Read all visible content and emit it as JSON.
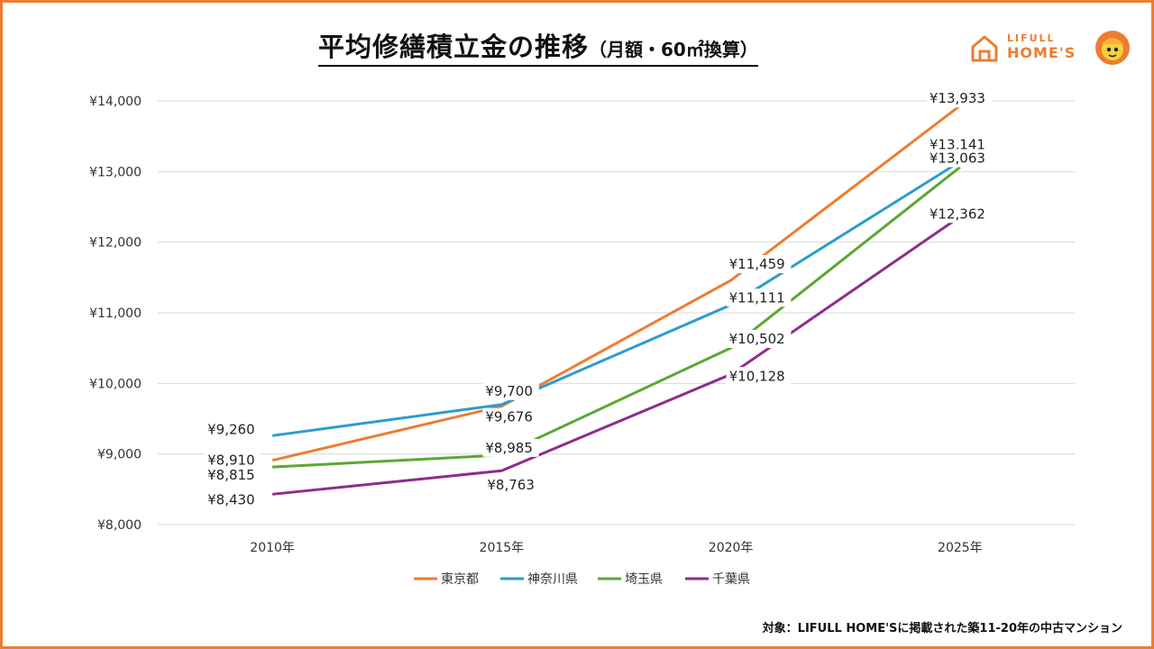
{
  "title": {
    "main": "平均修繕積立金の推移",
    "sub": "（月額・60㎡換算）"
  },
  "logo": {
    "line1": "LIFULL",
    "line2": "HOME'S"
  },
  "footnote": "対象：LIFULL HOME'Sに掲載された築11-20年の中古マンション",
  "colors": {
    "frame": "#ed7d31",
    "tokyo": "#ed7d31",
    "kanagawa": "#2e9bd0",
    "saitama": "#5aa832",
    "chiba": "#8e2c8e",
    "grid": "#d9d9d9"
  },
  "chart_data": {
    "type": "line",
    "title": "平均修繕積立金の推移（月額・60㎡換算）",
    "categories": [
      "2010年",
      "2015年",
      "2020年",
      "2025年"
    ],
    "y_ticks": [
      "¥8,000",
      "¥9,000",
      "¥10,000",
      "¥11,000",
      "¥12,000",
      "¥13,000",
      "¥14,000"
    ],
    "ylim": [
      8000,
      14000
    ],
    "grid": true,
    "legend_position": "bottom",
    "series": [
      {
        "name": "東京都",
        "color": "#ed7d31",
        "values": [
          8910,
          9676,
          11459,
          13933
        ],
        "labels": [
          "¥8,910",
          "¥9,676",
          "¥11,459",
          "¥13,933"
        ]
      },
      {
        "name": "神奈川県",
        "color": "#2e9bd0",
        "values": [
          9260,
          9700,
          11111,
          13141
        ],
        "labels": [
          "¥9,260",
          "¥9,700",
          "¥11,111",
          "¥13,141"
        ]
      },
      {
        "name": "埼玉県",
        "color": "#5aa832",
        "values": [
          8815,
          8985,
          10502,
          13063
        ],
        "labels": [
          "¥8,815",
          "¥8,985",
          "¥10,502",
          "¥13,063"
        ]
      },
      {
        "name": "千葉県",
        "color": "#8e2c8e",
        "values": [
          8430,
          8763,
          10128,
          12362
        ],
        "labels": [
          "¥8,430",
          "¥8,763",
          "¥10,128",
          "¥12,362"
        ]
      }
    ]
  }
}
